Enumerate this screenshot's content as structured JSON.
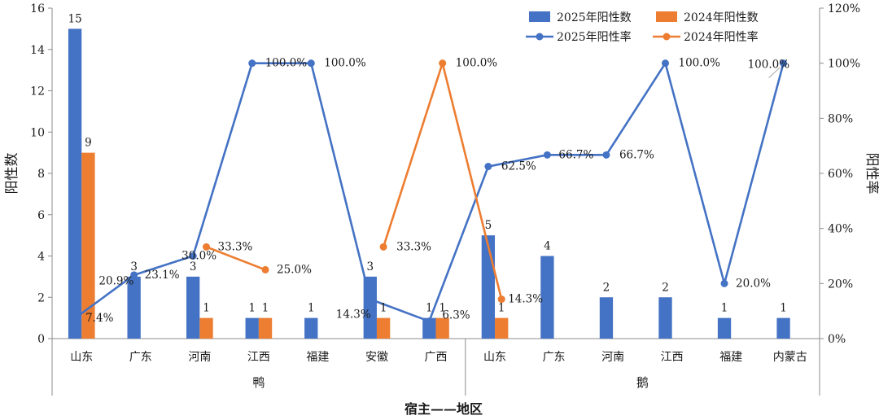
{
  "chart_data": {
    "type": "bar",
    "title": "",
    "xlabel": "宿主——地区",
    "ylabel_left": "阳性数",
    "ylabel_right": "阳性率",
    "ylim_left": [
      0,
      16
    ],
    "yticks_left": [
      "0",
      "2",
      "4",
      "6",
      "8",
      "10",
      "12",
      "14",
      "16"
    ],
    "ylim_right": [
      0,
      120
    ],
    "yticks_right": [
      "0%",
      "20%",
      "40%",
      "60%",
      "80%",
      "100%",
      "120%"
    ],
    "groups": [
      {
        "name": "鸭",
        "categories": [
          "山东",
          "广东",
          "河南",
          "江西",
          "福建",
          "安徽",
          "广西"
        ]
      },
      {
        "name": "鹅",
        "categories": [
          "山东",
          "广东",
          "河南",
          "江西",
          "福建",
          "内蒙古"
        ]
      }
    ],
    "legend_position": "top-right",
    "series": [
      {
        "name": "2025年阳性数",
        "kind": "bar",
        "axis": "left",
        "color": "#4472C4",
        "values": [
          15,
          3,
          3,
          1,
          1,
          3,
          1,
          5,
          4,
          2,
          2,
          1,
          1
        ],
        "labels": [
          "15",
          "3",
          "3",
          "1",
          "1",
          "3",
          "1",
          "5",
          "4",
          "2",
          "2",
          "1",
          "1"
        ]
      },
      {
        "name": "2024年阳性数",
        "kind": "bar",
        "axis": "left",
        "color": "#ED7D31",
        "values": [
          9,
          null,
          1,
          1,
          null,
          1,
          1,
          1,
          null,
          null,
          null,
          null,
          null
        ],
        "labels": [
          "9",
          "",
          "1",
          "1",
          "",
          "1",
          "1",
          "1",
          "",
          "",
          "",
          "",
          ""
        ]
      },
      {
        "name": "2025年阳性率",
        "kind": "line",
        "axis": "right",
        "color": "#4472C4",
        "values": [
          7.4,
          23.1,
          30.0,
          100.0,
          100.0,
          14.3,
          6.3,
          62.5,
          66.7,
          66.7,
          100.0,
          20.0,
          100.0
        ],
        "labels": [
          "7.4%",
          "23.1%",
          "30.0%",
          "100.0%",
          "100.0%",
          "14.3%",
          "6.3%",
          "62.5%",
          "66.7%",
          "66.7%",
          "100.0%",
          "20.0%",
          "100.0%"
        ]
      },
      {
        "name": "2024年阳性率",
        "kind": "line",
        "axis": "right",
        "color": "#ED7D31",
        "values": [
          20.9,
          null,
          33.3,
          25.0,
          null,
          33.3,
          100.0,
          14.3,
          null,
          null,
          null,
          null,
          null
        ],
        "labels": [
          "20.9%",
          "",
          "33.3%",
          "25.0%",
          "",
          "33.3%",
          "100.0%",
          "14.3%",
          "",
          "",
          "",
          "",
          ""
        ]
      }
    ]
  }
}
